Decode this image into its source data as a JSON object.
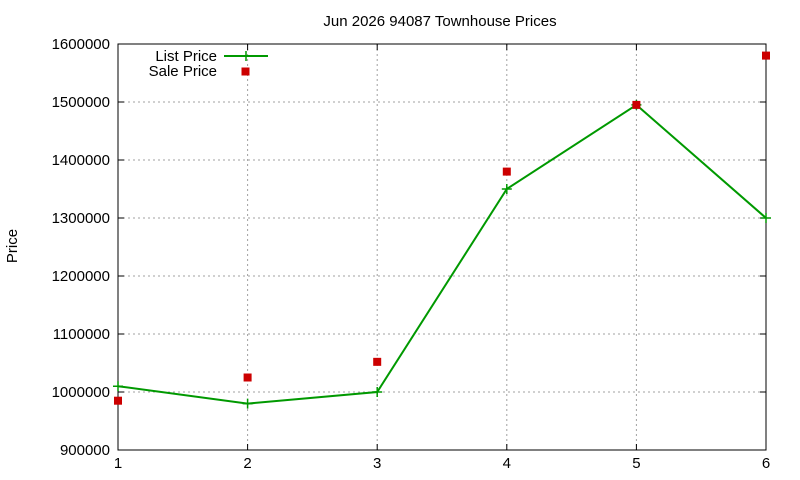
{
  "chart_data": {
    "type": "line",
    "title": "Jun 2026 94087 Townhouse Prices",
    "xlabel": "",
    "ylabel": "Price",
    "xlim": [
      1,
      6
    ],
    "ylim": [
      900000,
      1600000
    ],
    "x_ticks": [
      "1",
      "2",
      "3",
      "4",
      "5",
      "6"
    ],
    "y_ticks": [
      "900000",
      "1000000",
      "1100000",
      "1200000",
      "1300000",
      "1400000",
      "1500000",
      "1600000"
    ],
    "grid": true,
    "legend_position": "top-left",
    "x": [
      1,
      2,
      3,
      4,
      5,
      6
    ],
    "series": [
      {
        "name": "List Price",
        "style": "line-with-plus-markers",
        "color": "#009900",
        "values": [
          1010000,
          980000,
          1000000,
          1350000,
          1495000,
          1300000
        ]
      },
      {
        "name": "Sale Price",
        "style": "square-points",
        "color": "#cc0000",
        "values": [
          985000,
          1025000,
          1052000,
          1380000,
          1495000,
          1580000
        ]
      }
    ]
  }
}
